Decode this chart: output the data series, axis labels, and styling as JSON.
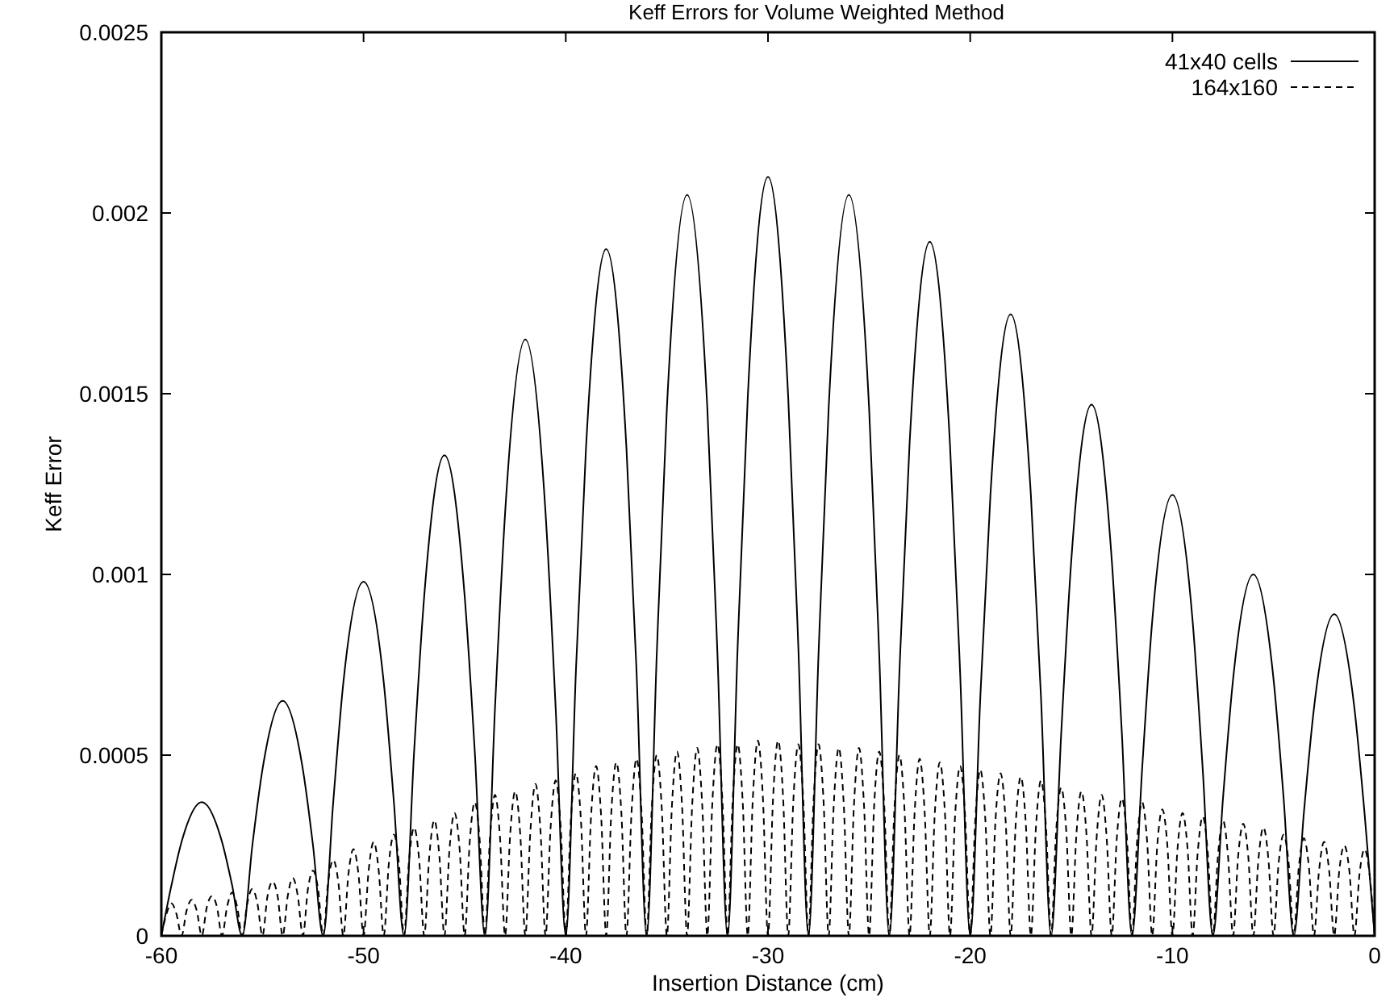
{
  "chart_data": {
    "type": "line",
    "title": "Keff Errors for Volume Weighted Method",
    "xlabel": "Insertion Distance (cm)",
    "ylabel": "Keff Error",
    "xlim": [
      -60,
      0
    ],
    "xticks": [
      -60,
      -50,
      -40,
      -30,
      -20,
      -10,
      0
    ],
    "ylim": [
      0,
      0.0025
    ],
    "yticks": [
      0,
      0.0005,
      0.001,
      0.0015,
      0.002,
      0.0025
    ],
    "grid": false,
    "legend": "top right",
    "marker": "none",
    "series": [
      {
        "name": "41x40 cells",
        "color": "#000000",
        "line_style": "solid",
        "x": [
          -60,
          -59.5,
          -59,
          -58,
          -57,
          -56.5,
          -56,
          -55.5,
          -55,
          -54,
          -53,
          -52.5,
          -52,
          -51.5,
          -51,
          -50,
          -49,
          -48.5,
          -48,
          -47.5,
          -47,
          -46,
          -45,
          -44.5,
          -44,
          -43.5,
          -43,
          -42,
          -41,
          -40.5,
          -40,
          -39.5,
          -39,
          -38,
          -37,
          -36.5,
          -36,
          -35.5,
          -35,
          -34,
          -33,
          -32.5,
          -32,
          -31.5,
          -31,
          -30,
          -29,
          -28.5,
          -28,
          -27.5,
          -27,
          -26,
          -25,
          -24.5,
          -24,
          -23.5,
          -23,
          -22,
          -21,
          -20.5,
          -20,
          -19.5,
          -19,
          -18,
          -17,
          -16.5,
          -16,
          -15.5,
          -15,
          -14,
          -13,
          -12.5,
          -12,
          -11.5,
          -11,
          -10,
          -9,
          -8.5,
          -8,
          -7.5,
          -7,
          -6,
          -5,
          -4.5,
          -4,
          -3.5,
          -3,
          -2,
          -1,
          -0.5,
          0
        ],
        "values": [
          0,
          0.00014,
          0.00026,
          0.00037,
          0.00026,
          0.00014,
          0,
          0.00025,
          0.00046,
          0.00065,
          0.00046,
          0.00025,
          0,
          0.00037,
          0.0007,
          0.00098,
          0.0007,
          0.00037,
          0,
          0.00051,
          0.00094,
          0.00133,
          0.00094,
          0.00051,
          0,
          0.00063,
          0.00117,
          0.00165,
          0.00117,
          0.00063,
          0,
          0.00073,
          0.00135,
          0.0019,
          0.00135,
          0.00073,
          0,
          0.00078,
          0.00146,
          0.00205,
          0.00146,
          0.00078,
          0,
          0.0008,
          0.00149,
          0.0021,
          0.00149,
          0.0008,
          0,
          0.00078,
          0.00146,
          0.00205,
          0.00146,
          0.00078,
          0,
          0.00073,
          0.00136,
          0.00192,
          0.00136,
          0.00073,
          0,
          0.00066,
          0.00122,
          0.00172,
          0.00122,
          0.00066,
          0,
          0.00056,
          0.00104,
          0.00147,
          0.00104,
          0.00056,
          0,
          0.00046,
          0.00087,
          0.00122,
          0.00087,
          0.00046,
          0,
          0.00038,
          0.00071,
          0.001,
          0.00071,
          0.00038,
          0,
          0.00034,
          0.00063,
          0.00089,
          0.00063,
          0.00034,
          0
        ]
      },
      {
        "name": "164x160",
        "color": "#000000",
        "line_style": "dashed",
        "x": [
          -60,
          -59.75,
          -59.5,
          -59.25,
          -59,
          -58.75,
          -58.5,
          -58.25,
          -58,
          -57.75,
          -57.5,
          -57.25,
          -57,
          -56.75,
          -56.5,
          -56.25,
          -56,
          -55.75,
          -55.5,
          -55.25,
          -55,
          -54.75,
          -54.5,
          -54.25,
          -54,
          -53.75,
          -53.5,
          -53.25,
          -53,
          -52.75,
          -52.5,
          -52.25,
          -52,
          -51.75,
          -51.5,
          -51.25,
          -51,
          -50.75,
          -50.5,
          -50.25,
          -50,
          -49.75,
          -49.5,
          -49.25,
          -49,
          -48.75,
          -48.5,
          -48.25,
          -48,
          -47.75,
          -47.5,
          -47.25,
          -47,
          -46.75,
          -46.5,
          -46.25,
          -46,
          -45.75,
          -45.5,
          -45.25,
          -45,
          -44.75,
          -44.5,
          -44.25,
          -44,
          -43.75,
          -43.5,
          -43.25,
          -43,
          -42.75,
          -42.5,
          -42.25,
          -42,
          -41.75,
          -41.5,
          -41.25,
          -41,
          -40.75,
          -40.5,
          -40.25,
          -40,
          -39.75,
          -39.5,
          -39.25,
          -39,
          -38.75,
          -38.5,
          -38.25,
          -38,
          -37.75,
          -37.5,
          -37.25,
          -37,
          -36.75,
          -36.5,
          -36.25,
          -36,
          -35.75,
          -35.5,
          -35.25,
          -35,
          -34.75,
          -34.5,
          -34.25,
          -34,
          -33.75,
          -33.5,
          -33.25,
          -33,
          -32.75,
          -32.5,
          -32.25,
          -32,
          -31.75,
          -31.5,
          -31.25,
          -31,
          -30.75,
          -30.5,
          -30.25,
          -30,
          -29.75,
          -29.5,
          -29.25,
          -29,
          -28.75,
          -28.5,
          -28.25,
          -28,
          -27.75,
          -27.5,
          -27.25,
          -27,
          -26.75,
          -26.5,
          -26.25,
          -26,
          -25.75,
          -25.5,
          -25.25,
          -25,
          -24.75,
          -24.5,
          -24.25,
          -24,
          -23.75,
          -23.5,
          -23.25,
          -23,
          -22.75,
          -22.5,
          -22.25,
          -22,
          -21.75,
          -21.5,
          -21.25,
          -21,
          -20.75,
          -20.5,
          -20.25,
          -20,
          -19.75,
          -19.5,
          -19.25,
          -19,
          -18.75,
          -18.5,
          -18.25,
          -18,
          -17.75,
          -17.5,
          -17.25,
          -17,
          -16.75,
          -16.5,
          -16.25,
          -16,
          -15.75,
          -15.5,
          -15.25,
          -15,
          -14.75,
          -14.5,
          -14.25,
          -14,
          -13.75,
          -13.5,
          -13.25,
          -13,
          -12.75,
          -12.5,
          -12.25,
          -12,
          -11.75,
          -11.5,
          -11.25,
          -11,
          -10.75,
          -10.5,
          -10.25,
          -10,
          -9.75,
          -9.5,
          -9.25,
          -9,
          -8.75,
          -8.5,
          -8.25,
          -8,
          -7.75,
          -7.5,
          -7.25,
          -7,
          -6.75,
          -6.5,
          -6.25,
          -6,
          -5.75,
          -5.5,
          -5.25,
          -5,
          -4.75,
          -4.5,
          -4.25,
          -4,
          -3.75,
          -3.5,
          -3.25,
          -3,
          -2.75,
          -2.5,
          -2.25,
          -2,
          -1.75,
          -1.5,
          -1.25,
          -1,
          -0.75,
          -0.5,
          -0.25,
          0
        ],
        "values": [
          0,
          6e-05,
          9e-05,
          6e-05,
          0,
          7e-05,
          0.0001,
          7e-05,
          0,
          8e-05,
          0.00011,
          8e-05,
          0,
          8e-05,
          0.00012,
          8e-05,
          0,
          9e-05,
          0.00013,
          9e-05,
          0,
          0.00011,
          0.00015,
          0.00011,
          0,
          0.00011,
          0.00016,
          0.00011,
          0,
          0.00013,
          0.00018,
          0.00013,
          0,
          0.00015,
          0.00021,
          0.00015,
          0,
          0.00017,
          0.00024,
          0.00017,
          0,
          0.00018,
          0.00026,
          0.00018,
          0,
          0.0002,
          0.00028,
          0.0002,
          0,
          0.00021,
          0.0003,
          0.00021,
          0,
          0.00022,
          0.00032,
          0.00022,
          0,
          0.00024,
          0.00034,
          0.00024,
          0,
          0.00026,
          0.00037,
          0.00026,
          0,
          0.00027,
          0.00039,
          0.00027,
          0,
          0.00028,
          0.0004,
          0.00028,
          0,
          0.00029,
          0.00042,
          0.00029,
          0,
          0.0003,
          0.00043,
          0.0003,
          0,
          0.00032,
          0.00045,
          0.00032,
          0,
          0.00033,
          0.00047,
          0.00033,
          0,
          0.00034,
          0.00048,
          0.00034,
          0,
          0.00034,
          0.00049,
          0.00034,
          0,
          0.00035,
          0.0005,
          0.00035,
          0,
          0.00036,
          0.00051,
          0.00036,
          0,
          0.00036,
          0.00052,
          0.00036,
          0,
          0.00037,
          0.00053,
          0.00037,
          0,
          0.00037,
          0.00053,
          0.00037,
          0,
          0.00038,
          0.00054,
          0.00038,
          0,
          0.00038,
          0.00054,
          0.00038,
          0,
          0.00037,
          0.00053,
          0.00037,
          0,
          0.00037,
          0.00053,
          0.00037,
          0,
          0.00036,
          0.00052,
          0.00036,
          0,
          0.00036,
          0.00052,
          0.00036,
          0,
          0.00036,
          0.00051,
          0.00036,
          0,
          0.00035,
          0.0005,
          0.00035,
          0,
          0.00034,
          0.00049,
          0.00034,
          0,
          0.00034,
          0.00048,
          0.00034,
          0,
          0.00033,
          0.00047,
          0.00033,
          0,
          0.00032,
          0.00046,
          0.00032,
          0,
          0.00032,
          0.00045,
          0.00032,
          0,
          0.00031,
          0.00044,
          0.00031,
          0,
          0.0003,
          0.00043,
          0.0003,
          0,
          0.00029,
          0.00041,
          0.00029,
          0,
          0.00028,
          0.0004,
          0.00028,
          0,
          0.00027,
          0.00039,
          0.00027,
          0,
          0.00027,
          0.00038,
          0.00027,
          0,
          0.00026,
          0.00037,
          0.00026,
          0,
          0.00025,
          0.00035,
          0.00025,
          0,
          0.00024,
          0.00034,
          0.00024,
          0,
          0.00023,
          0.00033,
          0.00023,
          0,
          0.00022,
          0.00032,
          0.00022,
          0,
          0.00022,
          0.00031,
          0.00022,
          0,
          0.00021,
          0.0003,
          0.00021,
          0,
          0.0002,
          0.00028,
          0.0002,
          0,
          0.00019,
          0.00027,
          0.00019,
          0,
          0.00018,
          0.00026,
          0.00018,
          0,
          0.00018,
          0.00025,
          0.00018,
          0,
          0.00017,
          0.00024,
          0.00017,
          0
        ]
      }
    ]
  }
}
